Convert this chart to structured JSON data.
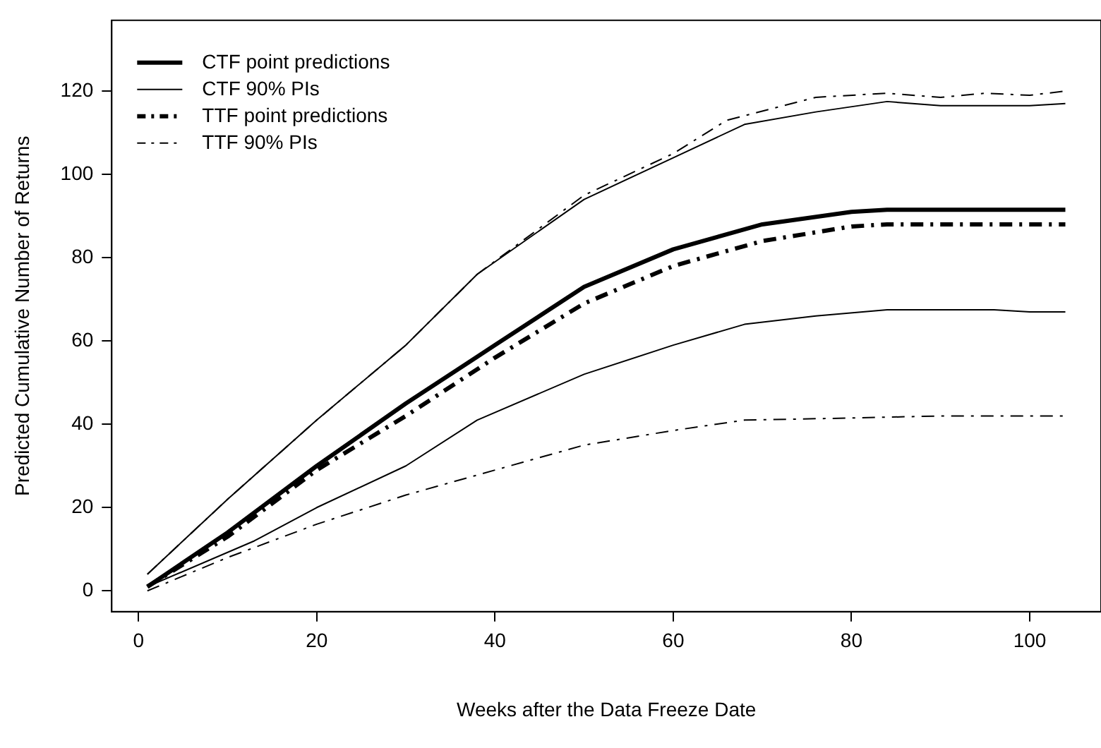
{
  "chart_data": {
    "type": "line",
    "xlabel": "Weeks after the Data Freeze Date",
    "ylabel": "Predicted Cumulative Number of Returns",
    "xlim": [
      -3,
      108
    ],
    "ylim": [
      -5,
      137
    ],
    "xticks": [
      0,
      20,
      40,
      60,
      80,
      100
    ],
    "yticks": [
      0,
      20,
      40,
      60,
      80,
      100,
      120
    ],
    "grid": false,
    "legend": "top left",
    "marker": "none",
    "series": [
      {
        "name": "CTF point predictions",
        "color": "#000000",
        "line_style": "solid",
        "x": [
          1,
          10,
          20,
          30,
          40,
          50,
          60,
          70,
          80,
          84,
          104
        ],
        "values": [
          1,
          14,
          30,
          45,
          59,
          73,
          82,
          88,
          91,
          91.5,
          91.5
        ]
      },
      {
        "name": "CTF 90% PIs",
        "color": "#000000",
        "line_style": "solid",
        "x": [
          1,
          10,
          20,
          30,
          38,
          50,
          60,
          68,
          76,
          84,
          90,
          100,
          104
        ],
        "values": [
          4,
          22,
          41,
          59,
          76,
          94,
          104,
          112,
          115,
          117.5,
          116.5,
          116.5,
          117
        ]
      },
      {
        "name": "TTF point predictions",
        "color": "#000000",
        "line_style": "dashed",
        "x": [
          1,
          10,
          20,
          30,
          40,
          50,
          60,
          70,
          80,
          84,
          104
        ],
        "values": [
          1,
          13,
          29,
          42,
          56,
          69,
          78,
          84,
          87.5,
          88,
          88
        ]
      },
      {
        "name": "TTF 90% PIs",
        "color": "#000000",
        "line_style": "dashed",
        "x": [
          1,
          10,
          20,
          30,
          38,
          50,
          60,
          66,
          76,
          84,
          90,
          95,
          100,
          104
        ],
        "values": [
          4,
          22,
          41,
          59,
          76,
          95,
          105,
          113,
          118.5,
          119.5,
          118.5,
          119.5,
          119,
          120
        ]
      },
      {
        "name": null,
        "color": "#000000",
        "line_style": "solid",
        "x": [
          1,
          13,
          20,
          30,
          38,
          50,
          60,
          68,
          76,
          84,
          96,
          100,
          104
        ],
        "values": [
          1,
          12,
          20,
          30,
          41,
          52,
          59,
          64,
          66,
          67.5,
          67.5,
          67,
          67
        ]
      },
      {
        "name": null,
        "color": "#000000",
        "line_style": "dashed",
        "x": [
          1,
          10,
          20,
          30,
          40,
          50,
          60,
          68,
          80,
          90,
          104
        ],
        "values": [
          0,
          8,
          16,
          23,
          29,
          35,
          38.5,
          41,
          41.5,
          42,
          42
        ]
      }
    ]
  }
}
